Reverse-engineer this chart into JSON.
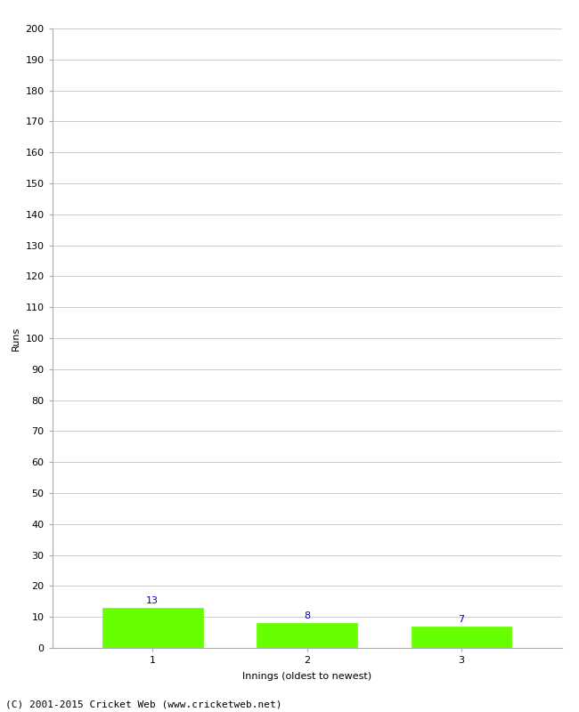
{
  "categories": [
    "1",
    "2",
    "3"
  ],
  "values": [
    13,
    8,
    7
  ],
  "bar_color": "#66ff00",
  "bar_edge_color": "#66ff00",
  "ylabel": "Runs",
  "xlabel": "Innings (oldest to newest)",
  "ylim": [
    0,
    200
  ],
  "yticks": [
    0,
    10,
    20,
    30,
    40,
    50,
    60,
    70,
    80,
    90,
    100,
    110,
    120,
    130,
    140,
    150,
    160,
    170,
    180,
    190,
    200
  ],
  "label_color": "#0000cc",
  "label_fontsize": 8,
  "footer": "(C) 2001-2015 Cricket Web (www.cricketweb.net)",
  "background_color": "#ffffff",
  "grid_color": "#cccccc",
  "tick_fontsize": 8,
  "ylabel_fontsize": 8,
  "xlabel_fontsize": 8,
  "footer_fontsize": 8,
  "bar_width": 0.65
}
